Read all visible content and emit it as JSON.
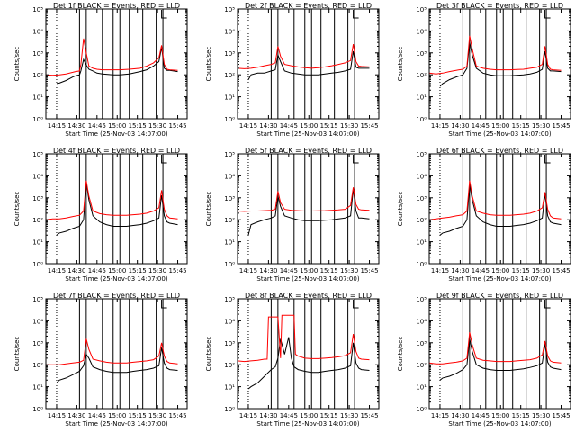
{
  "colors": {
    "events": "#000000",
    "lld": "#ff0000",
    "axis": "#000000",
    "background": "#ffffff"
  },
  "common": {
    "xlabel": "Start Time (25-Nov-03 14:07:00)",
    "ylabel": "Counts/sec",
    "xticks": [
      {
        "t": 8,
        "label": "14:15"
      },
      {
        "t": 23,
        "label": "14:30"
      },
      {
        "t": 38,
        "label": "14:45"
      },
      {
        "t": 53,
        "label": "15:00"
      },
      {
        "t": 68,
        "label": "15:15"
      },
      {
        "t": 83,
        "label": "15:30"
      },
      {
        "t": 98,
        "label": "15:45"
      }
    ],
    "yticks": [
      {
        "exp": 0,
        "label": "10⁰"
      },
      {
        "exp": 1,
        "label": "10¹"
      },
      {
        "exp": 2,
        "label": "10²"
      },
      {
        "exp": 3,
        "label": "10³"
      },
      {
        "exp": 4,
        "label": "10⁴"
      },
      {
        "exp": 5,
        "label": "10⁵"
      }
    ],
    "xlim_minutes": [
      0,
      105
    ],
    "ylim_log10": [
      0,
      5
    ],
    "dotted_line_minutes": 8,
    "solid_lines_minutes": [
      25,
      30,
      42,
      50,
      55,
      62,
      72,
      82,
      87
    ],
    "bracket_label": "L",
    "bracket_minutes": 86
  },
  "chart_data": [
    {
      "type": "line",
      "title": "Det 1f BLACK = Events, RED = LLD",
      "yscale": "log",
      "series": [
        {
          "name": "Events",
          "x": [
            8,
            10,
            15,
            20,
            22,
            25,
            26,
            28,
            30,
            32,
            35,
            38,
            42,
            50,
            55,
            62,
            70,
            75,
            80,
            84,
            86,
            88,
            90,
            92,
            98
          ],
          "y": [
            40,
            42,
            55,
            80,
            90,
            100,
            150,
            500,
            280,
            180,
            150,
            120,
            110,
            100,
            100,
            110,
            140,
            170,
            250,
            400,
            1800,
            200,
            160,
            160,
            140
          ]
        },
        {
          "name": "LLD",
          "x": [
            0,
            5,
            10,
            15,
            20,
            22,
            25,
            26,
            28,
            30,
            32,
            35,
            38,
            42,
            50,
            55,
            62,
            70,
            75,
            80,
            84,
            86,
            88,
            90,
            92,
            98
          ],
          "y": [
            100,
            95,
            100,
            110,
            130,
            140,
            150,
            300,
            4500,
            1000,
            250,
            200,
            180,
            170,
            170,
            170,
            180,
            200,
            250,
            350,
            600,
            2200,
            300,
            180,
            170,
            160
          ]
        }
      ]
    },
    {
      "type": "line",
      "title": "Det 2f BLACK = Events, RED = LLD",
      "yscale": "log",
      "series": [
        {
          "name": "Events",
          "x": [
            8,
            10,
            15,
            20,
            25,
            28,
            30,
            32,
            35,
            40,
            45,
            50,
            55,
            60,
            65,
            70,
            75,
            80,
            84,
            86,
            88,
            90,
            92,
            98
          ],
          "y": [
            60,
            100,
            120,
            120,
            150,
            170,
            800,
            400,
            150,
            120,
            110,
            100,
            100,
            100,
            110,
            120,
            130,
            150,
            180,
            1200,
            220,
            200,
            200,
            200
          ]
        },
        {
          "name": "LLD",
          "x": [
            0,
            5,
            10,
            15,
            20,
            25,
            28,
            30,
            32,
            35,
            40,
            45,
            50,
            55,
            60,
            65,
            70,
            75,
            80,
            84,
            86,
            88,
            90,
            92,
            98
          ],
          "y": [
            200,
            190,
            200,
            220,
            260,
            300,
            350,
            2000,
            700,
            300,
            260,
            230,
            210,
            200,
            210,
            230,
            260,
            300,
            350,
            450,
            2500,
            400,
            250,
            240,
            230
          ]
        }
      ]
    },
    {
      "type": "line",
      "title": "Det 3f BLACK = Events, RED = LLD",
      "yscale": "log",
      "series": [
        {
          "name": "Events",
          "x": [
            8,
            10,
            15,
            20,
            25,
            28,
            30,
            32,
            35,
            40,
            45,
            50,
            55,
            60,
            65,
            70,
            75,
            80,
            84,
            86,
            88,
            90,
            92,
            98
          ],
          "y": [
            30,
            40,
            60,
            80,
            100,
            200,
            3000,
            800,
            200,
            120,
            100,
            90,
            90,
            90,
            95,
            100,
            110,
            130,
            180,
            1200,
            200,
            150,
            150,
            140
          ]
        },
        {
          "name": "LLD",
          "x": [
            0,
            5,
            10,
            15,
            20,
            25,
            28,
            30,
            32,
            35,
            40,
            45,
            50,
            55,
            60,
            65,
            70,
            75,
            80,
            84,
            86,
            88,
            90,
            92,
            98
          ],
          "y": [
            120,
            110,
            120,
            140,
            160,
            180,
            250,
            6000,
            1500,
            250,
            200,
            180,
            170,
            170,
            170,
            175,
            180,
            200,
            220,
            300,
            2000,
            300,
            180,
            170,
            160
          ]
        }
      ]
    },
    {
      "type": "line",
      "title": "Det 4f BLACK = Events, RED = LLD",
      "yscale": "log",
      "series": [
        {
          "name": "Events",
          "x": [
            8,
            10,
            15,
            20,
            25,
            28,
            30,
            32,
            35,
            40,
            45,
            50,
            55,
            60,
            65,
            70,
            75,
            80,
            84,
            86,
            88,
            90,
            92,
            98
          ],
          "y": [
            20,
            25,
            30,
            40,
            50,
            100,
            5000,
            800,
            150,
            80,
            60,
            50,
            50,
            50,
            55,
            60,
            70,
            90,
            120,
            1300,
            150,
            80,
            70,
            60
          ]
        },
        {
          "name": "LLD",
          "x": [
            0,
            5,
            10,
            15,
            20,
            25,
            28,
            30,
            32,
            35,
            40,
            45,
            50,
            55,
            60,
            65,
            70,
            75,
            80,
            84,
            86,
            88,
            90,
            92,
            98
          ],
          "y": [
            100,
            110,
            110,
            120,
            140,
            160,
            250,
            6000,
            1200,
            250,
            190,
            170,
            160,
            160,
            160,
            170,
            180,
            200,
            250,
            350,
            2200,
            300,
            150,
            120,
            110
          ]
        }
      ]
    },
    {
      "type": "line",
      "title": "Det 5f BLACK = Events, RED = LLD",
      "yscale": "log",
      "series": [
        {
          "name": "Events",
          "x": [
            8,
            10,
            15,
            20,
            25,
            28,
            30,
            32,
            35,
            40,
            45,
            50,
            55,
            60,
            65,
            70,
            75,
            80,
            84,
            86,
            88,
            90,
            92,
            98
          ],
          "y": [
            20,
            60,
            80,
            100,
            120,
            150,
            1200,
            400,
            150,
            120,
            100,
            90,
            90,
            90,
            95,
            100,
            110,
            120,
            150,
            2500,
            250,
            120,
            120,
            110
          ]
        },
        {
          "name": "LLD",
          "x": [
            0,
            5,
            10,
            15,
            20,
            25,
            28,
            30,
            32,
            35,
            40,
            45,
            50,
            55,
            60,
            65,
            70,
            75,
            80,
            84,
            86,
            88,
            90,
            92,
            98
          ],
          "y": [
            250,
            240,
            250,
            250,
            260,
            270,
            300,
            2000,
            600,
            300,
            270,
            260,
            250,
            250,
            255,
            260,
            270,
            280,
            300,
            450,
            3000,
            500,
            300,
            280,
            270
          ]
        }
      ]
    },
    {
      "type": "line",
      "title": "Det 6f BLACK = Events, RED = LLD",
      "yscale": "log",
      "series": [
        {
          "name": "Events",
          "x": [
            8,
            10,
            15,
            20,
            25,
            28,
            30,
            32,
            35,
            40,
            45,
            50,
            55,
            60,
            65,
            70,
            75,
            80,
            84,
            86,
            88,
            90,
            92,
            98
          ],
          "y": [
            20,
            25,
            30,
            40,
            50,
            100,
            4000,
            800,
            150,
            80,
            60,
            50,
            50,
            50,
            55,
            60,
            70,
            90,
            120,
            1500,
            150,
            80,
            70,
            60
          ]
        },
        {
          "name": "LLD",
          "x": [
            0,
            5,
            10,
            15,
            20,
            25,
            28,
            30,
            32,
            35,
            40,
            45,
            50,
            55,
            60,
            65,
            70,
            75,
            80,
            84,
            86,
            88,
            90,
            92,
            98
          ],
          "y": [
            100,
            110,
            120,
            130,
            150,
            170,
            250,
            6000,
            1200,
            250,
            200,
            170,
            160,
            160,
            160,
            170,
            180,
            200,
            250,
            350,
            1800,
            300,
            150,
            120,
            110
          ]
        }
      ]
    },
    {
      "type": "line",
      "title": "Det 7f BLACK = Events, RED = LLD",
      "yscale": "log",
      "series": [
        {
          "name": "Events",
          "x": [
            8,
            10,
            15,
            20,
            25,
            28,
            30,
            32,
            35,
            40,
            45,
            50,
            55,
            60,
            65,
            70,
            75,
            80,
            84,
            86,
            88,
            90,
            92,
            98
          ],
          "y": [
            15,
            20,
            25,
            35,
            50,
            90,
            300,
            200,
            80,
            60,
            50,
            45,
            45,
            45,
            50,
            55,
            60,
            70,
            90,
            600,
            120,
            70,
            60,
            55
          ]
        },
        {
          "name": "LLD",
          "x": [
            0,
            5,
            10,
            15,
            20,
            25,
            28,
            30,
            32,
            35,
            40,
            45,
            50,
            55,
            60,
            65,
            70,
            75,
            80,
            84,
            86,
            88,
            90,
            92,
            98
          ],
          "y": [
            100,
            100,
            100,
            110,
            120,
            130,
            160,
            1500,
            500,
            180,
            150,
            130,
            120,
            120,
            120,
            130,
            140,
            150,
            170,
            250,
            1000,
            250,
            140,
            120,
            110
          ]
        }
      ]
    },
    {
      "type": "line",
      "title": "Det 8f BLACK = Events, RED = LLD",
      "yscale": "log",
      "series": [
        {
          "name": "Events",
          "x": [
            8,
            10,
            15,
            20,
            25,
            28,
            30,
            32,
            35,
            38,
            40,
            42,
            45,
            50,
            55,
            60,
            65,
            70,
            75,
            80,
            84,
            86,
            88,
            90,
            92,
            98
          ],
          "y": [
            8,
            10,
            15,
            30,
            60,
            80,
            200,
            1500,
            300,
            1800,
            200,
            80,
            60,
            50,
            45,
            45,
            50,
            55,
            60,
            70,
            90,
            1000,
            120,
            70,
            60,
            55
          ]
        },
        {
          "name": "LLD",
          "x": [
            0,
            5,
            10,
            15,
            20,
            22,
            23,
            30,
            32,
            33,
            35,
            42,
            43,
            45,
            50,
            55,
            60,
            65,
            70,
            75,
            80,
            84,
            86,
            88,
            90,
            92,
            98
          ],
          "y": [
            150,
            140,
            150,
            160,
            180,
            180,
            15000,
            15000,
            200,
            18000,
            18000,
            18000,
            300,
            250,
            200,
            190,
            190,
            200,
            210,
            230,
            260,
            350,
            2500,
            400,
            200,
            180,
            170
          ]
        }
      ]
    },
    {
      "type": "line",
      "title": "Det 9f BLACK = Events, RED = LLD",
      "yscale": "log",
      "series": [
        {
          "name": "Events",
          "x": [
            8,
            10,
            15,
            20,
            25,
            28,
            30,
            32,
            35,
            40,
            45,
            50,
            55,
            60,
            65,
            70,
            75,
            80,
            84,
            86,
            88,
            90,
            92,
            98
          ],
          "y": [
            20,
            25,
            30,
            40,
            60,
            100,
            1500,
            400,
            100,
            70,
            60,
            55,
            55,
            55,
            60,
            65,
            75,
            90,
            120,
            900,
            130,
            80,
            70,
            60
          ]
        },
        {
          "name": "LLD",
          "x": [
            0,
            5,
            10,
            15,
            20,
            25,
            28,
            30,
            32,
            35,
            40,
            45,
            50,
            55,
            60,
            65,
            70,
            75,
            80,
            84,
            86,
            88,
            90,
            92,
            98
          ],
          "y": [
            120,
            110,
            110,
            120,
            130,
            150,
            200,
            3000,
            800,
            200,
            160,
            150,
            140,
            140,
            140,
            150,
            160,
            170,
            200,
            280,
            1200,
            250,
            150,
            130,
            120
          ]
        }
      ]
    }
  ]
}
